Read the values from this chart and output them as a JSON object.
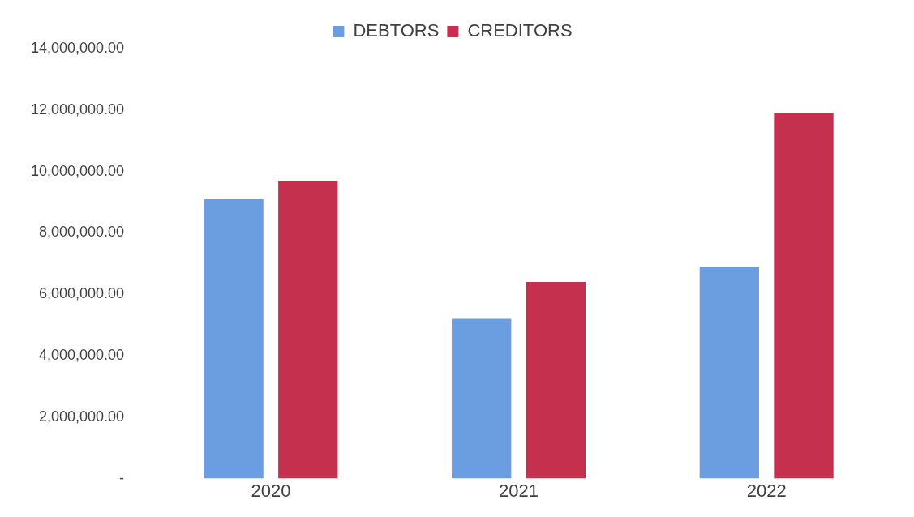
{
  "chart_data": {
    "type": "bar",
    "categories": [
      "2020",
      "2021",
      "2022"
    ],
    "series": [
      {
        "name": "DEBTORS",
        "color": "#6a9ee0",
        "values": [
          9100000,
          5200000,
          6900000
        ]
      },
      {
        "name": "CREDITORS",
        "color": "#c4304d",
        "values": [
          9700000,
          6400000,
          11900000
        ]
      }
    ],
    "ylim": [
      0,
      14000000
    ],
    "yticks": [
      {
        "value": 0,
        "label": "-"
      },
      {
        "value": 2000000,
        "label": "2,000,000.00"
      },
      {
        "value": 4000000,
        "label": "4,000,000.00"
      },
      {
        "value": 6000000,
        "label": "6,000,000.00"
      },
      {
        "value": 8000000,
        "label": "8,000,000.00"
      },
      {
        "value": 10000000,
        "label": "10,000,000.00"
      },
      {
        "value": 12000000,
        "label": "12,000,000.00"
      },
      {
        "value": 14000000,
        "label": "14,000,000.00"
      }
    ],
    "grid": false,
    "legend": "top"
  }
}
